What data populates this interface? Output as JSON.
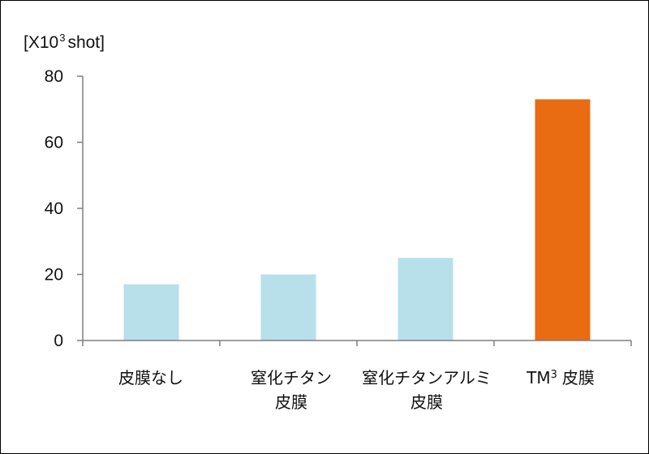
{
  "chart_data": {
    "type": "bar",
    "ylabel_prefix": "[X10",
    "ylabel_sup": "3",
    "ylabel_suffix": "shot]",
    "ylim": [
      0,
      80
    ],
    "yticks": [
      "0",
      "20",
      "40",
      "60",
      "80"
    ],
    "grid": false,
    "categories": [
      {
        "line1": "皮膜なし",
        "line2": ""
      },
      {
        "line1": "窒化チタン",
        "line2": "皮膜"
      },
      {
        "line1": "窒化チタンアルミ",
        "line2": "皮膜"
      },
      {
        "line1": "TM",
        "sup": "3",
        "line1_suffix": "皮膜",
        "line2": ""
      }
    ],
    "values": [
      17,
      20,
      25,
      73
    ],
    "colors": [
      "#b7e0ea",
      "#b7e0ea",
      "#b7e0ea",
      "#e96b12"
    ],
    "axis_color": "#7f7f7f"
  }
}
